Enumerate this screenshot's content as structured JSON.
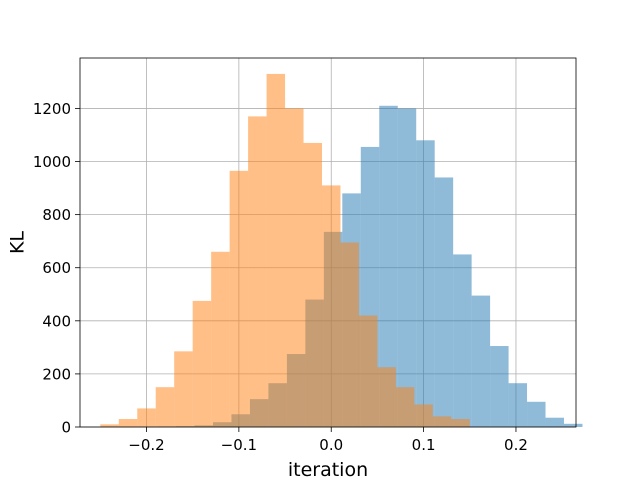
{
  "chart_data": {
    "type": "histogram",
    "title": "",
    "xlabel": "iteration",
    "ylabel": "KL",
    "xlim": [
      -0.272,
      0.265
    ],
    "ylim": [
      0,
      1390
    ],
    "grid": true,
    "x_ticks": [
      {
        "value": -0.2,
        "label": "−0.2"
      },
      {
        "value": -0.1,
        "label": "−0.1"
      },
      {
        "value": 0.0,
        "label": "0.0"
      },
      {
        "value": 0.1,
        "label": "0.1"
      },
      {
        "value": 0.2,
        "label": "0.2"
      }
    ],
    "y_ticks": [
      {
        "value": 0,
        "label": "0"
      },
      {
        "value": 200,
        "label": "200"
      },
      {
        "value": 400,
        "label": "400"
      },
      {
        "value": 600,
        "label": "600"
      },
      {
        "value": 800,
        "label": "800"
      },
      {
        "value": 1000,
        "label": "1000"
      },
      {
        "value": 1200,
        "label": "1200"
      }
    ],
    "series": [
      {
        "color": "#1f77b4",
        "alpha": 0.5,
        "bins": [
          {
            "x0": -0.188,
            "x1": -0.168,
            "value": 2
          },
          {
            "x0": -0.168,
            "x1": -0.148,
            "value": 3
          },
          {
            "x0": -0.148,
            "x1": -0.128,
            "value": 6
          },
          {
            "x0": -0.128,
            "x1": -0.108,
            "value": 18
          },
          {
            "x0": -0.108,
            "x1": -0.088,
            "value": 48
          },
          {
            "x0": -0.088,
            "x1": -0.068,
            "value": 105
          },
          {
            "x0": -0.068,
            "x1": -0.048,
            "value": 165
          },
          {
            "x0": -0.048,
            "x1": -0.028,
            "value": 275
          },
          {
            "x0": -0.028,
            "x1": -0.008,
            "value": 480
          },
          {
            "x0": -0.008,
            "x1": 0.012,
            "value": 735
          },
          {
            "x0": 0.012,
            "x1": 0.032,
            "value": 880
          },
          {
            "x0": 0.032,
            "x1": 0.052,
            "value": 1055
          },
          {
            "x0": 0.052,
            "x1": 0.072,
            "value": 1210
          },
          {
            "x0": 0.072,
            "x1": 0.092,
            "value": 1200
          },
          {
            "x0": 0.092,
            "x1": 0.112,
            "value": 1080
          },
          {
            "x0": 0.112,
            "x1": 0.132,
            "value": 940
          },
          {
            "x0": 0.132,
            "x1": 0.152,
            "value": 650
          },
          {
            "x0": 0.152,
            "x1": 0.172,
            "value": 495
          },
          {
            "x0": 0.172,
            "x1": 0.192,
            "value": 305
          },
          {
            "x0": 0.192,
            "x1": 0.212,
            "value": 165
          },
          {
            "x0": 0.212,
            "x1": 0.232,
            "value": 95
          },
          {
            "x0": 0.232,
            "x1": 0.252,
            "value": 35
          },
          {
            "x0": 0.252,
            "x1": 0.272,
            "value": 12
          }
        ]
      },
      {
        "color": "#ff7f0e",
        "alpha": 0.5,
        "bins": [
          {
            "x0": -0.25,
            "x1": -0.23,
            "value": 10
          },
          {
            "x0": -0.23,
            "x1": -0.21,
            "value": 30
          },
          {
            "x0": -0.21,
            "x1": -0.19,
            "value": 70
          },
          {
            "x0": -0.19,
            "x1": -0.17,
            "value": 150
          },
          {
            "x0": -0.17,
            "x1": -0.15,
            "value": 285
          },
          {
            "x0": -0.15,
            "x1": -0.13,
            "value": 475
          },
          {
            "x0": -0.13,
            "x1": -0.11,
            "value": 660
          },
          {
            "x0": -0.11,
            "x1": -0.09,
            "value": 965
          },
          {
            "x0": -0.09,
            "x1": -0.07,
            "value": 1170
          },
          {
            "x0": -0.07,
            "x1": -0.05,
            "value": 1330
          },
          {
            "x0": -0.05,
            "x1": -0.03,
            "value": 1200
          },
          {
            "x0": -0.03,
            "x1": -0.01,
            "value": 1070
          },
          {
            "x0": -0.01,
            "x1": 0.01,
            "value": 910
          },
          {
            "x0": 0.01,
            "x1": 0.03,
            "value": 695
          },
          {
            "x0": 0.03,
            "x1": 0.05,
            "value": 420
          },
          {
            "x0": 0.05,
            "x1": 0.07,
            "value": 225
          },
          {
            "x0": 0.07,
            "x1": 0.09,
            "value": 150
          },
          {
            "x0": 0.09,
            "x1": 0.11,
            "value": 85
          },
          {
            "x0": 0.11,
            "x1": 0.13,
            "value": 40
          },
          {
            "x0": 0.13,
            "x1": 0.15,
            "value": 30
          }
        ]
      }
    ]
  }
}
